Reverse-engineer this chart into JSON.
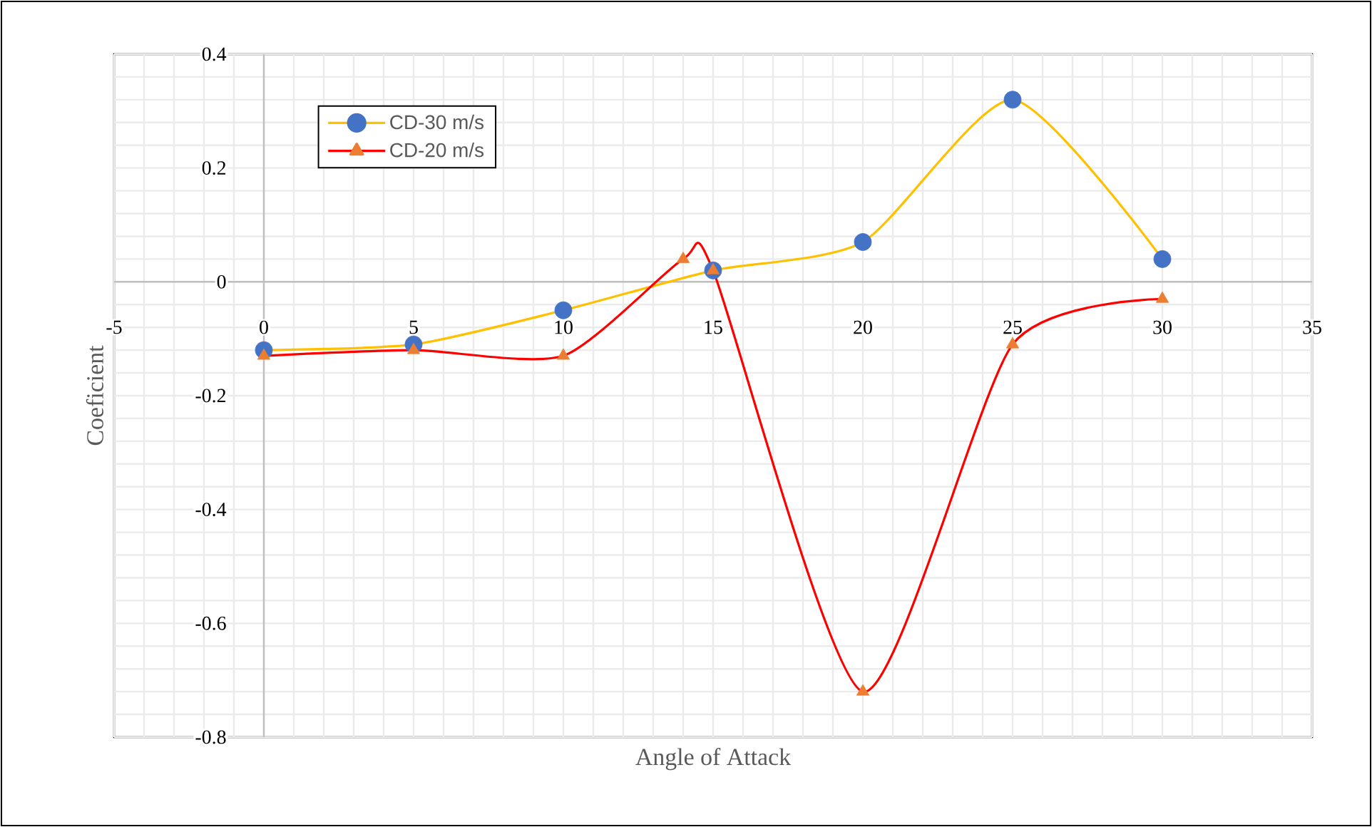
{
  "chart_data": {
    "type": "line",
    "xlabel": "Angle of Attack",
    "ylabel": "Coeficient",
    "xlim": [
      -5,
      35
    ],
    "xticks": [
      -5,
      0,
      5,
      10,
      15,
      20,
      25,
      30,
      35
    ],
    "ylim": [
      -0.8,
      0.4
    ],
    "yticks": [
      {
        "value": -0.8,
        "label": "-0.8"
      },
      {
        "value": -0.6,
        "label": "-0.6"
      },
      {
        "value": -0.4,
        "label": "-0.4"
      },
      {
        "value": -0.2,
        "label": "-0.2"
      },
      0,
      {
        "value": 0.2,
        "label": "0.2"
      },
      {
        "value": 0.4,
        "label": "0.4"
      }
    ],
    "grid": true,
    "legend": "top left",
    "series": [
      {
        "name": "CD-30 m/s",
        "color": "#ffc000",
        "marker": "circle",
        "x": [
          0,
          5,
          10,
          15,
          20,
          25,
          30
        ],
        "values": [
          -0.12,
          -0.11,
          -0.05,
          0.02,
          0.07,
          0.32,
          0.04
        ],
        "colors": [
          "#4472c4",
          "#4472c4",
          "#4472c4",
          "#4472c4",
          "#4472c4",
          "#4472c4",
          "#4472c4"
        ]
      },
      {
        "name": "CD-20 m/s",
        "color": "#ff0000",
        "marker": "triangle",
        "x": [
          0,
          5,
          10,
          14,
          15,
          20,
          25,
          30
        ],
        "values": [
          -0.13,
          -0.12,
          -0.13,
          0.04,
          0.02,
          -0.72,
          -0.11,
          -0.03
        ],
        "colors": [
          "#ed7d31",
          "#ed7d31",
          "#ed7d31",
          "#ed7d31",
          "#ed7d31",
          "#ed7d31",
          "#ed7d31",
          "#ed7d31"
        ]
      }
    ]
  }
}
